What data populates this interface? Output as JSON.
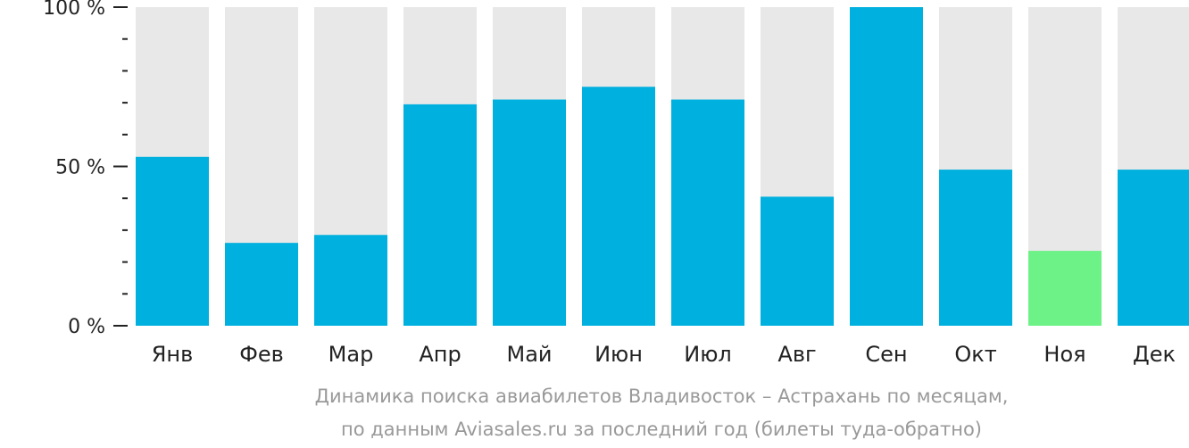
{
  "chart_data": {
    "type": "bar",
    "categories": [
      "Янв",
      "Фев",
      "Мар",
      "Апр",
      "Май",
      "Июн",
      "Июл",
      "Авг",
      "Сен",
      "Окт",
      "Ноя",
      "Дек"
    ],
    "values": [
      53,
      26,
      28.5,
      69.5,
      71,
      75,
      71,
      40.5,
      100,
      49,
      23.5,
      49
    ],
    "ylim": [
      0,
      100
    ],
    "y_ticks": [
      {
        "value": 0,
        "label": "0 %"
      },
      {
        "value": 50,
        "label": "50 %"
      },
      {
        "value": 100,
        "label": "100 %"
      }
    ],
    "minor_tick_step": 10,
    "highlight_category": "Ноя",
    "colors": {
      "bar": "#00b0de",
      "highlight": "#6cf286",
      "track": "#e8e8e8",
      "axis": "#222222"
    },
    "caption_lines": [
      "Динамика поиска авиабилетов Владивосток – Астрахань по месяцам,",
      "по данным Aviasales.ru за последний год (билеты туда-обратно)"
    ]
  }
}
